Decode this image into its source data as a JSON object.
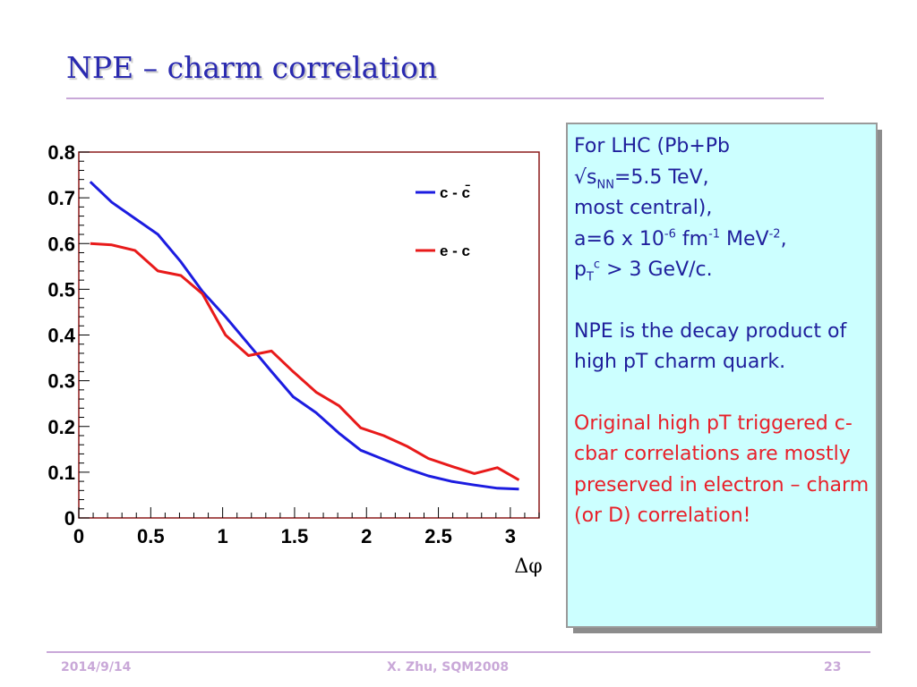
{
  "slide": {
    "title": "NPE – charm correlation",
    "footer": {
      "date": "2014/9/14",
      "author": "X. Zhu, SQM2008",
      "page": "23"
    }
  },
  "info_box": {
    "para1_line1": "For LHC (Pb+Pb",
    "para1_l2_a": "√s",
    "para1_l2_sub": "NN",
    "para1_l2_b": "=5.5 TeV,",
    "para1_line3": "most central),",
    "para1_l4_a": "a=6 x 10",
    "para1_l4_sup1": "-6",
    "para1_l4_b": " fm",
    "para1_l4_sup2": "-1",
    "para1_l4_c": " MeV",
    "para1_l4_sup3": "-2",
    "para1_l4_d": ",",
    "para1_l5_a": "p",
    "para1_l5_sub": "T",
    "para1_l5_sup": "c",
    "para1_l5_b": " > 3 GeV/c.",
    "para2": "NPE is the decay product of high pT charm quark.",
    "para3": "Original high pT triggered c-cbar correlations are mostly preserved in electron – charm (or D) correlation!",
    "colors": {
      "text": "#1f1f9c",
      "highlight": "#e8202a",
      "background": "#ccffff"
    }
  },
  "chart_data": {
    "type": "line",
    "title": "",
    "xlabel": "Δφ",
    "ylabel": "",
    "xlim": [
      0,
      3.2
    ],
    "ylim": [
      0,
      0.8
    ],
    "x_ticks": [
      "0",
      "0.5",
      "1",
      "1.5",
      "2",
      "2.5",
      "3"
    ],
    "y_ticks": [
      "0",
      "0.1",
      "0.2",
      "0.3",
      "0.4",
      "0.5",
      "0.6",
      "0.7",
      "0.8"
    ],
    "grid": false,
    "legend_position": "top-right",
    "series": [
      {
        "name": "c - c̄",
        "color": "#1c1ce0",
        "x": [
          0.08,
          0.23,
          0.39,
          0.55,
          0.71,
          0.86,
          1.02,
          1.18,
          1.34,
          1.49,
          1.65,
          1.81,
          1.96,
          2.12,
          2.28,
          2.43,
          2.59,
          2.75,
          2.91,
          3.06
        ],
        "y": [
          0.735,
          0.69,
          0.655,
          0.62,
          0.56,
          0.495,
          0.44,
          0.38,
          0.32,
          0.265,
          0.23,
          0.185,
          0.148,
          0.128,
          0.108,
          0.092,
          0.08,
          0.072,
          0.065,
          0.063
        ]
      },
      {
        "name": "e - c",
        "color": "#e81a1a",
        "x": [
          0.08,
          0.23,
          0.39,
          0.55,
          0.71,
          0.86,
          1.02,
          1.18,
          1.34,
          1.49,
          1.65,
          1.81,
          1.96,
          2.12,
          2.28,
          2.43,
          2.59,
          2.75,
          2.91,
          3.06
        ],
        "y": [
          0.6,
          0.597,
          0.585,
          0.54,
          0.53,
          0.49,
          0.4,
          0.355,
          0.365,
          0.32,
          0.275,
          0.245,
          0.197,
          0.18,
          0.157,
          0.13,
          0.113,
          0.097,
          0.11,
          0.083
        ]
      }
    ]
  }
}
